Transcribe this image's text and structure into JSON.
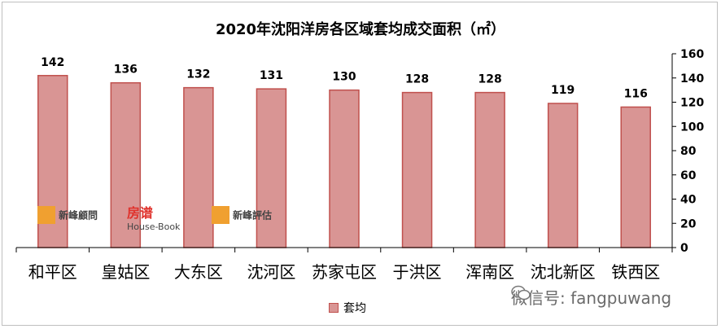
{
  "chart_data": {
    "type": "bar",
    "title": "2020年沈阳洋房各区域套均成交面积（㎡）",
    "categories": [
      "和平区",
      "皇姑区",
      "大东区",
      "沈河区",
      "苏家屯区",
      "于洪区",
      "浑南区",
      "沈北新区",
      "铁西区"
    ],
    "series": [
      {
        "name": "套均",
        "values": [
          142,
          136,
          132,
          131,
          130,
          128,
          128,
          119,
          116
        ]
      }
    ],
    "ylim": [
      0,
      160
    ],
    "yticks": [
      0,
      20,
      40,
      60,
      80,
      100,
      120,
      140,
      160
    ],
    "y_axis_side": "right",
    "legend_position": "bottom",
    "colors": {
      "bar_fill": "#d99594",
      "bar_stroke": "#c0504d"
    }
  },
  "watermarks": {
    "logo1": "新峰顧問",
    "logo2": "房谱",
    "logo2_sub": "House-Book",
    "logo3": "新峰評估"
  },
  "wechat": {
    "label": "微信号: fangpuwang",
    "icon": "wechat-icon"
  }
}
